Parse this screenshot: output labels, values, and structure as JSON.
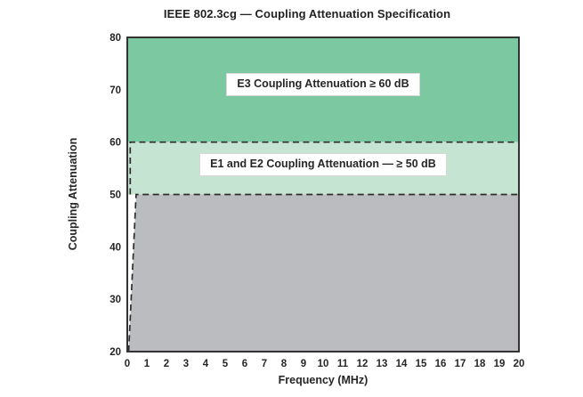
{
  "page": {
    "background": "#ffffff"
  },
  "chart_data": {
    "type": "area",
    "title": "IEEE 802.3cg — Coupling Attenuation Specification",
    "xlabel": "Frequency (MHz)",
    "ylabel": "Coupling Attenuation",
    "xlim": [
      0,
      20
    ],
    "ylim": [
      20,
      80
    ],
    "x_ticks": [
      0,
      1,
      2,
      3,
      4,
      5,
      6,
      7,
      8,
      9,
      10,
      11,
      12,
      13,
      14,
      15,
      16,
      17,
      18,
      19,
      20
    ],
    "y_ticks": [
      20,
      30,
      40,
      50,
      60,
      70,
      80
    ],
    "grid": false,
    "legend_position": "none",
    "regions": [
      {
        "id": "e3-region",
        "label": "E3 Coupling Attenuation ≥ 60 dB",
        "fill": "#7cc8a0",
        "points": [
          [
            0,
            60
          ],
          [
            0,
            80
          ],
          [
            20,
            80
          ],
          [
            20,
            60
          ]
        ]
      },
      {
        "id": "e1e2-region",
        "label": "E1 and E2 Coupling Attenuation — ≥ 50 dB",
        "fill": "#c6e4d2",
        "points": [
          [
            0,
            50
          ],
          [
            0,
            60
          ],
          [
            20,
            60
          ],
          [
            20,
            50
          ]
        ]
      },
      {
        "id": "below-spec-region",
        "label": "",
        "fill": "#bbbcc0",
        "points": [
          [
            0.07,
            20
          ],
          [
            0.45,
            50
          ],
          [
            20,
            50
          ],
          [
            20,
            20
          ]
        ]
      }
    ],
    "boundaries": [
      {
        "id": "60db-limit-line",
        "value_db": 60,
        "dash": true,
        "points": [
          [
            0.15,
            50
          ],
          [
            0.15,
            60
          ],
          [
            20,
            60
          ]
        ]
      },
      {
        "id": "50db-limit-line",
        "value_db": 50,
        "dash": true,
        "points": [
          [
            0.07,
            20
          ],
          [
            0.45,
            50
          ],
          [
            20,
            50
          ]
        ]
      }
    ],
    "line_color": "#2d2d2d",
    "frame_color": "#333333"
  }
}
